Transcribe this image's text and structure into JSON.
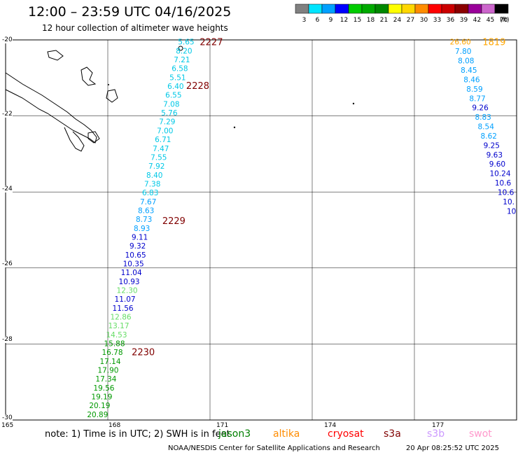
{
  "header": {
    "title": "12:00 – 23:59 UTC 04/16/2025",
    "subtitle": "12 hour collection of altimeter wave heights"
  },
  "legend": {
    "unit": "(ft)",
    "bins": [
      {
        "label": "3",
        "color": "#808080"
      },
      {
        "label": "6",
        "color": "#00e5ff"
      },
      {
        "label": "9",
        "color": "#00a0ff"
      },
      {
        "label": "12",
        "color": "#0000ff"
      },
      {
        "label": "15",
        "color": "#00cc00"
      },
      {
        "label": "18",
        "color": "#00aa00"
      },
      {
        "label": "21",
        "color": "#008800"
      },
      {
        "label": "24",
        "color": "#ffff00"
      },
      {
        "label": "27",
        "color": "#ffd700"
      },
      {
        "label": "30",
        "color": "#ff8c00"
      },
      {
        "label": "33",
        "color": "#ff0000"
      },
      {
        "label": "36",
        "color": "#cc0000"
      },
      {
        "label": "39",
        "color": "#8b0000"
      },
      {
        "label": "42",
        "color": "#990099"
      },
      {
        "label": "45",
        "color": "#cc66cc"
      },
      {
        "label": "70",
        "color": "#000000"
      }
    ]
  },
  "axes": {
    "lon_labels": [
      "165",
      "168",
      "171",
      "174",
      "177"
    ],
    "lat_labels": [
      "-20",
      "-22",
      "-24",
      "-26",
      "-28",
      "-30"
    ],
    "lon_range": [
      165,
      180
    ],
    "lat_range": [
      -30,
      -20
    ]
  },
  "passes": [
    {
      "label": "2227",
      "lon": 170.7,
      "lat": -20.05,
      "color": "#800000"
    },
    {
      "label": "2228",
      "lon": 170.3,
      "lat": -21.2,
      "color": "#800000"
    },
    {
      "label": "2229",
      "lon": 169.6,
      "lat": -24.75,
      "color": "#800000"
    },
    {
      "label": "2230",
      "lon": 168.7,
      "lat": -28.2,
      "color": "#800000"
    },
    {
      "label": "1819",
      "lon": 179.0,
      "lat": -20.05,
      "color": "#ffa500"
    }
  ],
  "track1": {
    "start": [
      170.3,
      -20.05
    ],
    "end": [
      167.7,
      -29.85
    ],
    "values": [
      "5.65",
      "8.20",
      "7.21",
      "6.58",
      "5.51",
      "6.40",
      "6.55",
      "7.08",
      "5.76",
      "7.29",
      "7.00",
      "6.71",
      "7.47",
      "7.55",
      "7.92",
      "8.40",
      "7.38",
      "6.83",
      "7.67",
      "8.63",
      "8.73",
      "8.93",
      "9.11",
      "9.32",
      "10.65",
      "10.35",
      "11.04",
      "10.93",
      "12.30",
      "11.07",
      "11.56",
      "12.86",
      "13.17",
      "14.53",
      "15.88",
      "16.78",
      "17.14",
      "17.90",
      "17.34",
      "19.56",
      "19.19",
      "20.19",
      "20.89"
    ],
    "colors": [
      "#00c8e6",
      "#00c8e6",
      "#00c8e6",
      "#00c8e6",
      "#00c8e6",
      "#00c8e6",
      "#00c8e6",
      "#00c8e6",
      "#00c8e6",
      "#00c8e6",
      "#00c8e6",
      "#00c8e6",
      "#00c8e6",
      "#00c8e6",
      "#00c8e6",
      "#00c8e6",
      "#00c8e6",
      "#00c8e6",
      "#00a0ff",
      "#00a0ff",
      "#00a0ff",
      "#00a0ff",
      "#0000cc",
      "#0000cc",
      "#0000cc",
      "#0000cc",
      "#0000cc",
      "#0000cc",
      "#66dd66",
      "#0000cc",
      "#0000cc",
      "#66dd66",
      "#66dd66",
      "#66dd66",
      "#009900",
      "#009900",
      "#009900",
      "#009900",
      "#009900",
      "#009900",
      "#009900",
      "#009900",
      "#009900"
    ]
  },
  "track2": {
    "start": [
      178.35,
      -20.05
    ],
    "end": [
      179.85,
      -24.5
    ],
    "values": [
      "26.60",
      "7.80",
      "8.08",
      "8.45",
      "8.46",
      "8.59",
      "8.77",
      "9.26",
      "8.83",
      "8.54",
      "8.62",
      "9.25",
      "9.63",
      "9.60",
      "10.24",
      "10.6",
      "10.6",
      "10.",
      "10"
    ],
    "colors": [
      "#ffa500",
      "#00a0ff",
      "#00a0ff",
      "#00a0ff",
      "#00a0ff",
      "#00a0ff",
      "#00a0ff",
      "#0000cc",
      "#00a0ff",
      "#00a0ff",
      "#00a0ff",
      "#0000cc",
      "#0000cc",
      "#0000cc",
      "#0000cc",
      "#0000cc",
      "#0000cc",
      "#0000cc",
      "#0000cc"
    ]
  },
  "note": "note:  1) Time is in UTC;  2) SWH is in feet",
  "satellites": [
    {
      "name": "jason3",
      "color": "#008000"
    },
    {
      "name": "altika",
      "color": "#ff8c00"
    },
    {
      "name": "cryosat",
      "color": "#ff0000"
    },
    {
      "name": "s3a",
      "color": "#800000"
    },
    {
      "name": "s3b",
      "color": "#cc99ff"
    },
    {
      "name": "swot",
      "color": "#ff99cc"
    }
  ],
  "footer": {
    "credit": "NOAA/NESDIS Center for Satellite Applications and Research",
    "timestamp": "20 Apr 08:25:52 UTC 2025"
  }
}
